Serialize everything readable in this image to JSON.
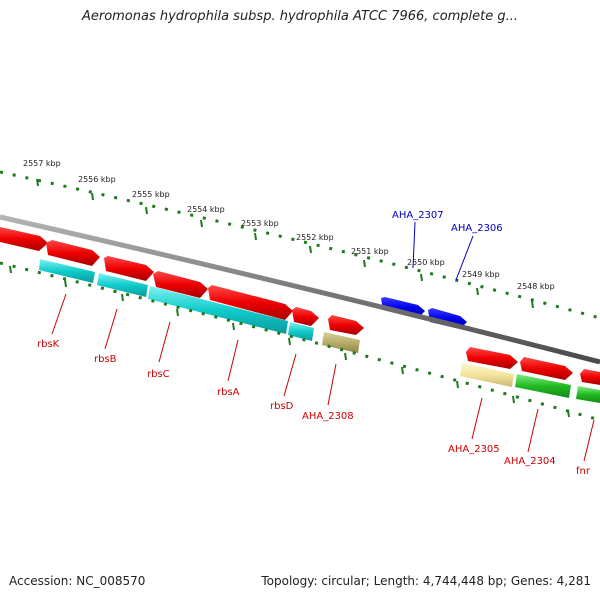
{
  "title": "Aeromonas hydrophila subsp. hydrophila ATCC 7966, complete g...",
  "footer": {
    "accession": "Accession: NC_008570",
    "summary": "Topology: circular; Length: 4,744,448 bp; Genes: 4,281"
  },
  "colors": {
    "backbone": "#7a7a7a",
    "ruler": "#1e7a1e",
    "label_red": "#cc0000",
    "label_blue": "#0000bb"
  },
  "kbp_ticks": [
    "2557 kbp",
    "2556 kbp",
    "2555 kbp",
    "2554 kbp",
    "2553 kbp",
    "2552 kbp",
    "2551 kbp",
    "2550 kbp",
    "2549 kbp",
    "2548 kbp"
  ],
  "genes": [
    {
      "name": "rbsK",
      "color": "red"
    },
    {
      "name": "rbsB",
      "color": "red"
    },
    {
      "name": "rbsC",
      "color": "red"
    },
    {
      "name": "rbsA",
      "color": "red"
    },
    {
      "name": "rbsD",
      "color": "red"
    },
    {
      "name": "AHA_2308",
      "color": "red"
    },
    {
      "name": "AHA_2307",
      "color": "blue"
    },
    {
      "name": "AHA_2306",
      "color": "blue"
    },
    {
      "name": "AHA_2305",
      "color": "red"
    },
    {
      "name": "AHA_2304",
      "color": "red"
    },
    {
      "name": "fnr",
      "color": "red"
    }
  ]
}
